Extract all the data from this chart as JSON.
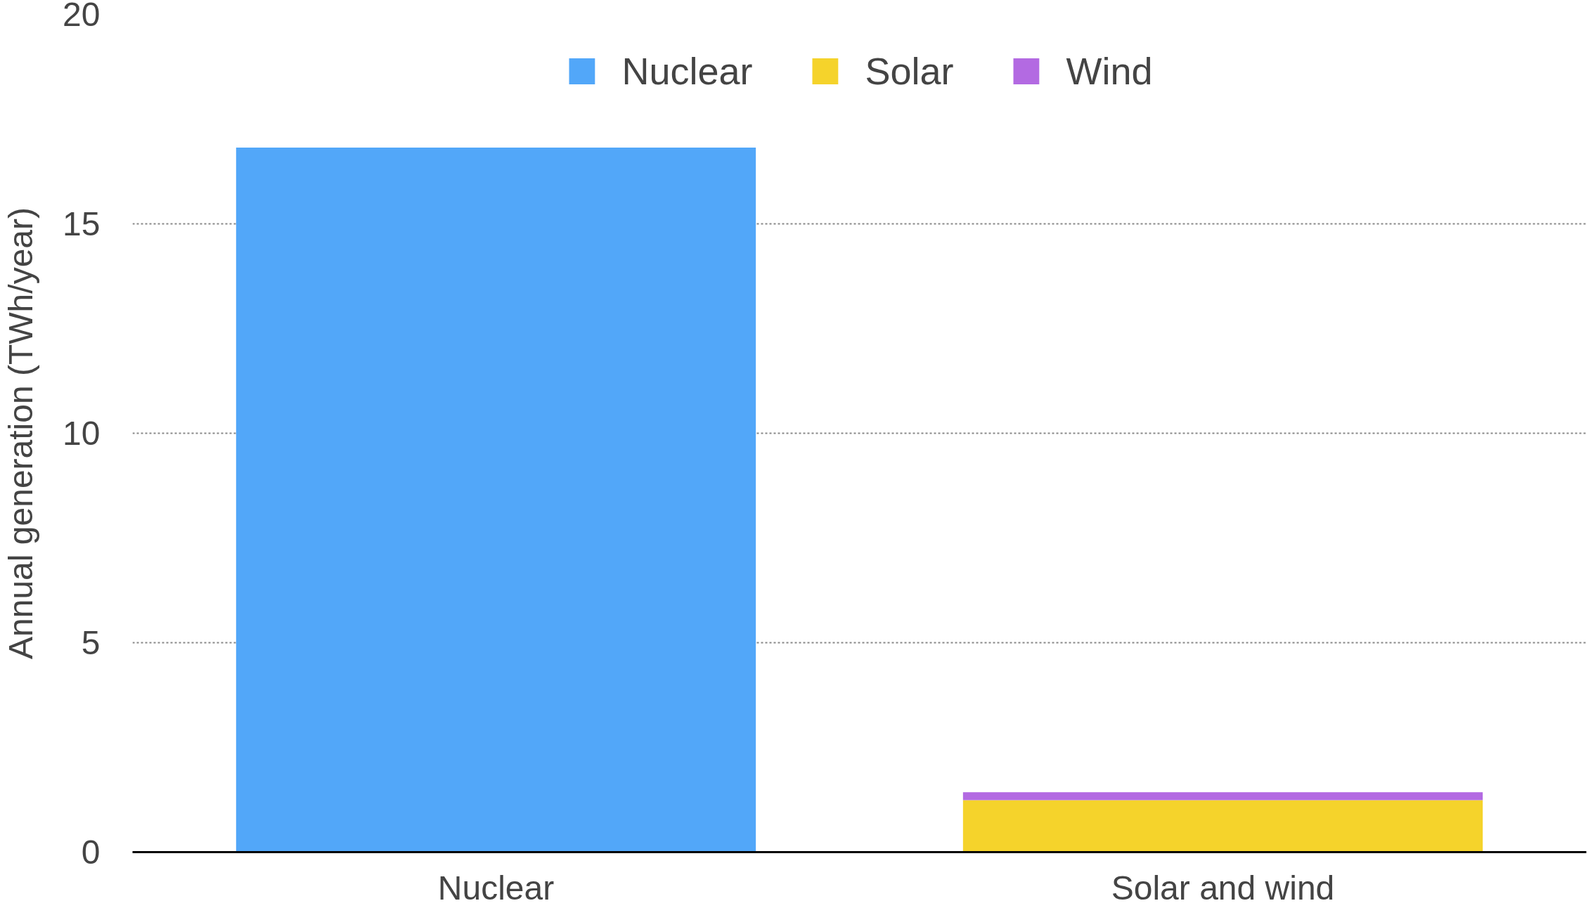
{
  "chart_data": {
    "type": "bar",
    "stacked": true,
    "categories": [
      "Nuclear",
      "Solar and wind"
    ],
    "ylabel": "Annual generation (TWh/year)",
    "ylim": [
      0,
      20
    ],
    "yticks": [
      0,
      5,
      10,
      15,
      20
    ],
    "grid": "y",
    "legend": "top",
    "series": [
      {
        "name": "Nuclear",
        "color": "#52a7f9",
        "values": [
          16.82,
          null
        ]
      },
      {
        "name": "Solar",
        "color": "#f5d32b",
        "values": [
          null,
          1.24
        ]
      },
      {
        "name": "Wind",
        "color": "#b36ae2",
        "values": [
          null,
          0.19
        ]
      }
    ]
  }
}
